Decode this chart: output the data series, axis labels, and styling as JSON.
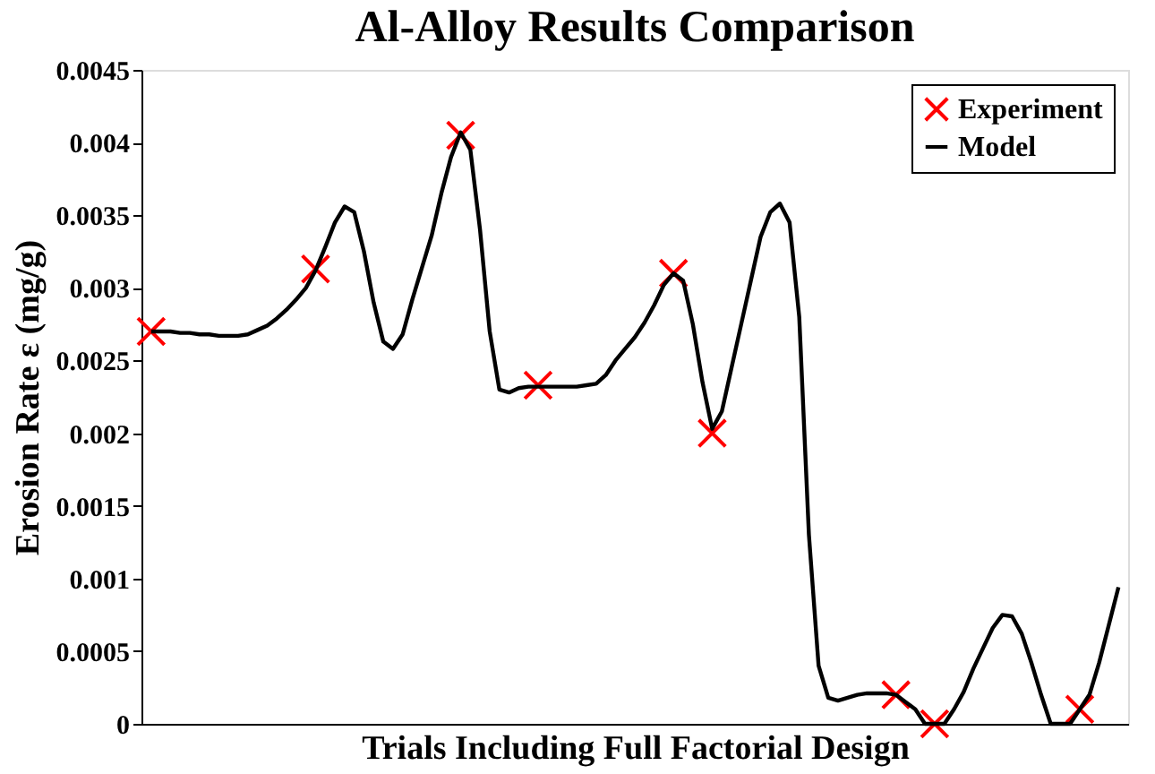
{
  "chart_data": {
    "type": "line",
    "title": "Al-Alloy Results Comparison",
    "xlabel": "Trials Including Full Factorial Design",
    "ylabel": "Erosion Rate ε (mg/g)",
    "categories": [
      null,
      null,
      null,
      null,
      null,
      null,
      null,
      null,
      null,
      null,
      null,
      null,
      null,
      null,
      null,
      null,
      null,
      null,
      null,
      null,
      null,
      null,
      null,
      null,
      null,
      null,
      null,
      null,
      null,
      null,
      null,
      null,
      null,
      null,
      null,
      null,
      null,
      null,
      null,
      null,
      null,
      null,
      null,
      null,
      null,
      null,
      null,
      null,
      null,
      null,
      null,
      null,
      null,
      null,
      null,
      null,
      null,
      null,
      null,
      null,
      null,
      null,
      null,
      null,
      null,
      null,
      null,
      null,
      null,
      null,
      null,
      null,
      null,
      null,
      null,
      null,
      null,
      null,
      null,
      null,
      null,
      null,
      null,
      null,
      null,
      null,
      null,
      null,
      null,
      null,
      null,
      null,
      null,
      null,
      null,
      null,
      null,
      null,
      null,
      null,
      null
    ],
    "ylim": [
      0,
      0.0045
    ],
    "yticks": [
      0,
      0.0005,
      0.001,
      0.0015,
      0.002,
      0.0025,
      0.003,
      0.0035,
      0.004,
      0.0045
    ],
    "tick_labels": "y",
    "grid": false,
    "legend": "top right",
    "series": [
      {
        "name": "Experiment",
        "type": "scatter",
        "marker": "cross",
        "color": "#ff0000",
        "values": [
          0.0027,
          null,
          null,
          null,
          null,
          null,
          null,
          null,
          null,
          null,
          null,
          null,
          null,
          null,
          null,
          null,
          null,
          0.00313,
          null,
          null,
          null,
          null,
          null,
          null,
          null,
          null,
          null,
          null,
          null,
          null,
          null,
          null,
          0.00405,
          null,
          null,
          null,
          null,
          null,
          null,
          null,
          0.00233,
          null,
          null,
          null,
          null,
          null,
          null,
          null,
          null,
          null,
          null,
          null,
          null,
          null,
          0.0031,
          null,
          null,
          null,
          0.002,
          null,
          null,
          null,
          null,
          null,
          null,
          null,
          null,
          null,
          null,
          null,
          null,
          null,
          null,
          null,
          null,
          null,
          null,
          0.0002,
          null,
          null,
          null,
          0.0,
          null,
          null,
          null,
          null,
          null,
          null,
          null,
          null,
          null,
          null,
          null,
          null,
          null,
          null,
          0.0001,
          null,
          null,
          null,
          null
        ]
      },
      {
        "name": "Model",
        "type": "line",
        "marker": "none",
        "line_style": "solid",
        "color": "#000000",
        "values": [
          0.0027,
          0.0027,
          0.0027,
          0.00269,
          0.00269,
          0.00268,
          0.00268,
          0.00267,
          0.00267,
          0.00267,
          0.00268,
          0.00271,
          0.00274,
          0.00279,
          0.00285,
          0.00292,
          0.003,
          0.00312,
          0.00328,
          0.00345,
          0.00356,
          0.00352,
          0.00325,
          0.0029,
          0.00263,
          0.00258,
          0.00268,
          0.00292,
          0.00314,
          0.00336,
          0.00365,
          0.0039,
          0.00407,
          0.00395,
          0.0034,
          0.0027,
          0.0023,
          0.00228,
          0.00231,
          0.00232,
          0.00232,
          0.00232,
          0.00232,
          0.00232,
          0.00232,
          0.00233,
          0.00234,
          0.0024,
          0.0025,
          0.00258,
          0.00266,
          0.00276,
          0.00288,
          0.00302,
          0.0031,
          0.00305,
          0.00275,
          0.00235,
          0.00203,
          0.00215,
          0.00245,
          0.00275,
          0.00305,
          0.00335,
          0.00352,
          0.00358,
          0.00345,
          0.0028,
          0.0013,
          0.0004,
          0.00018,
          0.00016,
          0.00018,
          0.0002,
          0.00021,
          0.00021,
          0.00021,
          0.0002,
          0.00015,
          0.0001,
          0.0,
          0.0,
          0.0,
          0.0001,
          0.00022,
          0.00038,
          0.00052,
          0.00066,
          0.00075,
          0.00074,
          0.00062,
          0.00042,
          0.0002,
          0.0,
          0.0,
          0.0,
          0.0001,
          0.0002,
          0.00042,
          0.00068,
          0.00094
        ]
      }
    ]
  }
}
